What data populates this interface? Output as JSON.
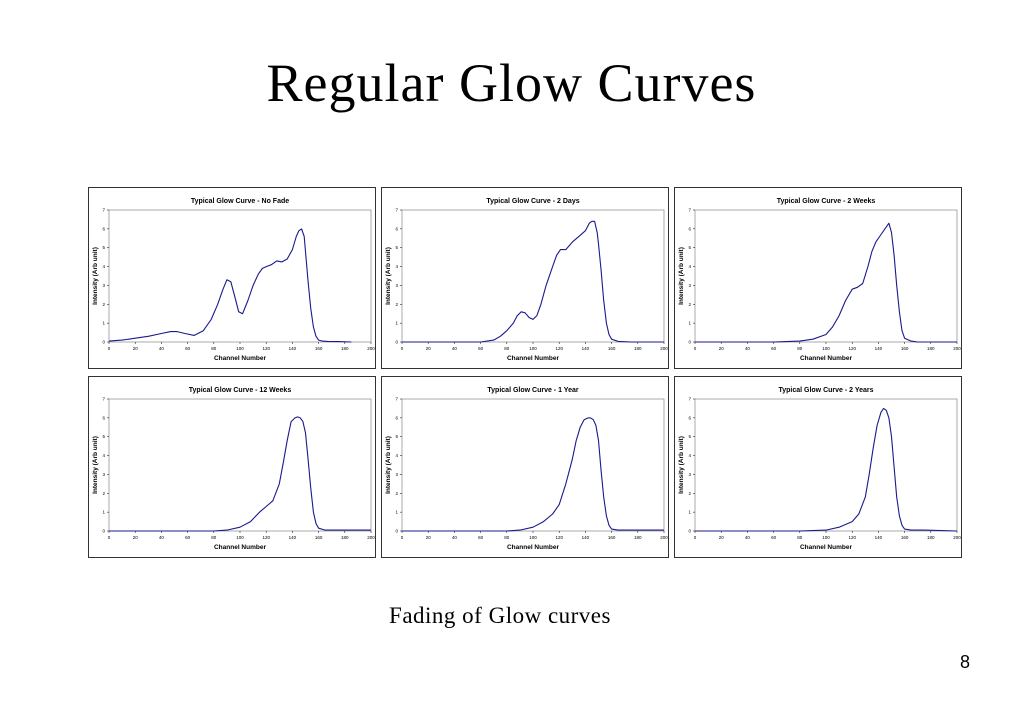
{
  "slide": {
    "title": "Regular Glow Curves",
    "caption": "Fading of Glow curves",
    "page_number": "8"
  },
  "colors": {
    "curve": "#1a1a8c",
    "frame": "#333333",
    "plot_border": "#888888"
  },
  "chart_data": [
    {
      "type": "line",
      "title": "Typical Glow Curve - No Fade",
      "xlabel": "Channel Number",
      "ylabel": "Intensity (Arb unit)",
      "xlim": [
        0,
        200
      ],
      "ylim": [
        0,
        7
      ],
      "xticks": [
        0,
        20,
        40,
        60,
        80,
        100,
        120,
        140,
        160,
        180,
        200
      ],
      "yticks": [
        0,
        1,
        2,
        3,
        4,
        5,
        6,
        7
      ],
      "series": [
        {
          "x": [
            0,
            10,
            20,
            30,
            40,
            47,
            52,
            58,
            65,
            72,
            78,
            83,
            87,
            90,
            93,
            96,
            99,
            102,
            106,
            110,
            114,
            117,
            120,
            124,
            128,
            132,
            136,
            140,
            143,
            145,
            147,
            149,
            150,
            152,
            154,
            156,
            158,
            160,
            163,
            167,
            175,
            185
          ],
          "y": [
            0.05,
            0.1,
            0.2,
            0.3,
            0.45,
            0.55,
            0.55,
            0.45,
            0.35,
            0.6,
            1.2,
            2.0,
            2.8,
            3.3,
            3.2,
            2.4,
            1.6,
            1.5,
            2.2,
            3.0,
            3.6,
            3.9,
            4.0,
            4.1,
            4.3,
            4.25,
            4.4,
            4.9,
            5.6,
            5.9,
            6.0,
            5.6,
            4.8,
            3.2,
            1.8,
            0.8,
            0.3,
            0.1,
            0.05,
            0.03,
            0.02,
            0.0
          ]
        }
      ]
    },
    {
      "type": "line",
      "title": "Typical Glow Curve - 2 Days",
      "xlabel": "Channel Number",
      "ylabel": "Intensity (Arb unit)",
      "xlim": [
        0,
        200
      ],
      "ylim": [
        0,
        7
      ],
      "xticks": [
        0,
        20,
        40,
        60,
        80,
        100,
        120,
        140,
        160,
        180,
        200
      ],
      "yticks": [
        0,
        1,
        2,
        3,
        4,
        5,
        6,
        7
      ],
      "series": [
        {
          "x": [
            0,
            30,
            60,
            70,
            75,
            80,
            85,
            88,
            91,
            94,
            97,
            100,
            103,
            106,
            110,
            115,
            118,
            121,
            125,
            130,
            135,
            140,
            143,
            145,
            147,
            149,
            150,
            152,
            154,
            156,
            158,
            160,
            165,
            175,
            200
          ],
          "y": [
            0,
            0,
            0,
            0.1,
            0.3,
            0.6,
            1.0,
            1.4,
            1.6,
            1.55,
            1.3,
            1.2,
            1.4,
            2.0,
            3.0,
            4.0,
            4.6,
            4.9,
            4.9,
            5.3,
            5.6,
            5.9,
            6.3,
            6.4,
            6.4,
            5.8,
            5.2,
            3.8,
            2.2,
            1.0,
            0.4,
            0.15,
            0.03,
            0.0,
            0.0
          ]
        }
      ]
    },
    {
      "type": "line",
      "title": "Typical Glow Curve - 2 Weeks",
      "xlabel": "Channel Number",
      "ylabel": "Intensity (Arb unit)",
      "xlim": [
        0,
        200
      ],
      "ylim": [
        0,
        7
      ],
      "xticks": [
        0,
        20,
        40,
        60,
        80,
        100,
        120,
        140,
        160,
        180,
        200
      ],
      "yticks": [
        0,
        1,
        2,
        3,
        4,
        5,
        6,
        7
      ],
      "series": [
        {
          "x": [
            0,
            60,
            70,
            80,
            90,
            100,
            105,
            110,
            115,
            120,
            124,
            128,
            132,
            135,
            138,
            142,
            145,
            147,
            148,
            150,
            152,
            154,
            156,
            158,
            160,
            165,
            170,
            200
          ],
          "y": [
            0,
            0,
            0.02,
            0.05,
            0.15,
            0.4,
            0.8,
            1.4,
            2.2,
            2.8,
            2.9,
            3.1,
            4.0,
            4.8,
            5.3,
            5.7,
            6.0,
            6.2,
            6.3,
            5.8,
            4.6,
            3.0,
            1.6,
            0.6,
            0.2,
            0.05,
            0.0,
            0.0
          ]
        }
      ]
    },
    {
      "type": "line",
      "title": "Typical Glow Curve - 12 Weeks",
      "xlabel": "Channel Number",
      "ylabel": "Intensity (Arb unit)",
      "xlim": [
        0,
        200
      ],
      "ylim": [
        0,
        7
      ],
      "xticks": [
        0,
        20,
        40,
        60,
        80,
        100,
        120,
        140,
        160,
        180,
        200
      ],
      "yticks": [
        0,
        1,
        2,
        3,
        4,
        5,
        6,
        7
      ],
      "series": [
        {
          "x": [
            0,
            40,
            80,
            90,
            100,
            108,
            115,
            120,
            125,
            130,
            133,
            136,
            139,
            142,
            144,
            146,
            148,
            150,
            152,
            154,
            156,
            158,
            160,
            165,
            170,
            200
          ],
          "y": [
            0,
            0,
            0,
            0.05,
            0.2,
            0.5,
            1.0,
            1.3,
            1.6,
            2.5,
            3.6,
            4.8,
            5.8,
            6.0,
            6.05,
            6.0,
            5.8,
            5.2,
            3.8,
            2.3,
            1.0,
            0.4,
            0.15,
            0.05,
            0.05,
            0.05
          ]
        }
      ]
    },
    {
      "type": "line",
      "title": "Typical Glow Curve - 1 Year",
      "xlabel": "Channel Number",
      "ylabel": "Intensity (Arb unit)",
      "xlim": [
        0,
        200
      ],
      "ylim": [
        0,
        7
      ],
      "xticks": [
        0,
        20,
        40,
        60,
        80,
        100,
        120,
        140,
        160,
        180,
        200
      ],
      "yticks": [
        0,
        1,
        2,
        3,
        4,
        5,
        6,
        7
      ],
      "series": [
        {
          "x": [
            0,
            60,
            80,
            90,
            100,
            108,
            115,
            120,
            125,
            130,
            133,
            136,
            139,
            142,
            144,
            146,
            148,
            150,
            152,
            154,
            156,
            158,
            160,
            165,
            170,
            200
          ],
          "y": [
            0,
            0,
            0,
            0.05,
            0.2,
            0.5,
            0.9,
            1.4,
            2.5,
            3.8,
            4.8,
            5.5,
            5.9,
            6.0,
            6.0,
            5.9,
            5.6,
            4.8,
            3.2,
            1.8,
            0.8,
            0.3,
            0.1,
            0.05,
            0.05,
            0.05
          ]
        }
      ]
    },
    {
      "type": "line",
      "title": "Typical Glow Curve - 2 Years",
      "xlabel": "Channel Number",
      "ylabel": "Intensity (Arb unit)",
      "xlim": [
        0,
        200
      ],
      "ylim": [
        0,
        7
      ],
      "xticks": [
        0,
        20,
        40,
        60,
        80,
        100,
        120,
        140,
        160,
        180,
        200
      ],
      "yticks": [
        0,
        1,
        2,
        3,
        4,
        5,
        6,
        7
      ],
      "series": [
        {
          "x": [
            0,
            80,
            100,
            110,
            120,
            125,
            130,
            133,
            136,
            139,
            142,
            144,
            146,
            148,
            150,
            152,
            154,
            156,
            158,
            160,
            165,
            175,
            200
          ],
          "y": [
            0,
            0,
            0.05,
            0.2,
            0.5,
            0.9,
            1.8,
            3.0,
            4.4,
            5.6,
            6.3,
            6.5,
            6.4,
            6.0,
            5.0,
            3.4,
            1.8,
            0.8,
            0.3,
            0.1,
            0.05,
            0.05,
            0.0
          ]
        }
      ]
    }
  ]
}
